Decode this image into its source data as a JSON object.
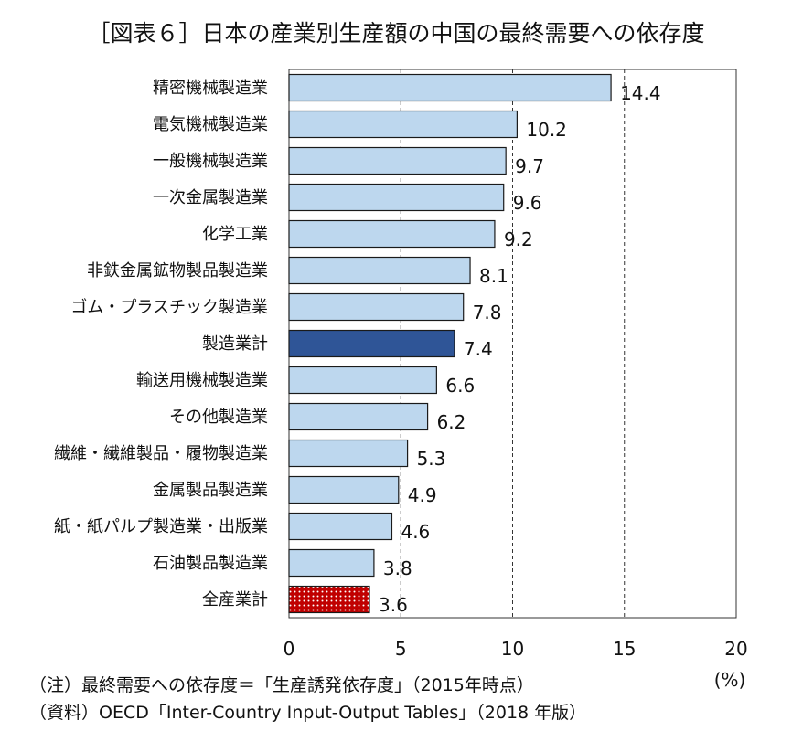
{
  "chart_data": {
    "type": "bar",
    "orientation": "horizontal",
    "title": "［図表６］日本の産業別生産額の中国の最終需要への依存度",
    "categories": [
      "精密機械製造業",
      "電気機械製造業",
      "一般機械製造業",
      "一次金属製造業",
      "化学工業",
      "非鉄金属鉱物製品製造業",
      "ゴム・プラスチック製造業",
      "製造業計",
      "輸送用機械製造業",
      "その他製造業",
      "繊維・繊維製品・履物製造業",
      "金属製品製造業",
      "紙・紙パルプ製造業・出版業",
      "石油製品製造業",
      "全産業計"
    ],
    "values": [
      14.4,
      10.2,
      9.7,
      9.6,
      9.2,
      8.1,
      7.8,
      7.4,
      6.6,
      6.2,
      5.3,
      4.9,
      4.6,
      3.8,
      3.6
    ],
    "value_labels": [
      "14.4",
      "10.2",
      "9.7",
      "9.6",
      "9.2",
      "8.1",
      "7.8",
      "7.4",
      "6.6",
      "6.2",
      "5.3",
      "4.9",
      "4.6",
      "3.8",
      "3.6"
    ],
    "bar_styles": [
      "normal",
      "normal",
      "normal",
      "normal",
      "normal",
      "normal",
      "normal",
      "highlight",
      "normal",
      "normal",
      "normal",
      "normal",
      "normal",
      "normal",
      "dotted"
    ],
    "colors": {
      "normal": "#bdd7ee",
      "highlight": "#2f5597",
      "dotted": "#c00000",
      "dots": "#ffffff",
      "edge": "#1a1a1a"
    },
    "xlim": [
      0,
      20
    ],
    "xticks": [
      0,
      5,
      10,
      15,
      20
    ],
    "xtick_labels": [
      "0",
      "5",
      "10",
      "15",
      "20"
    ],
    "xunit": "(%)",
    "grid": {
      "vertical_dashed": [
        5,
        10,
        15
      ]
    }
  },
  "notes": {
    "note1": "（注）最終需要への依存度＝「生産誘発依存度」（2015年時点）",
    "note2": "（資料）OECD「Inter-Country Input-Output Tables」（2018 年版）"
  }
}
